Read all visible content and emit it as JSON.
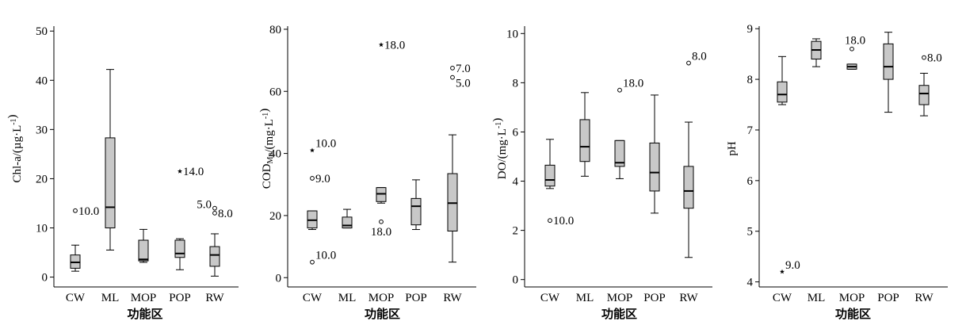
{
  "chart_data": [
    {
      "type": "boxplot",
      "ylabel": "Chl-a/(µg·L⁻¹)",
      "xlabel": "功能区",
      "ylim": [
        -2,
        51
      ],
      "yticks": [
        0,
        10,
        20,
        30,
        40,
        50
      ],
      "categories": [
        "CW",
        "ML",
        "MOP",
        "POP",
        "RW"
      ],
      "boxes": [
        {
          "category": "CW",
          "min": 1.2,
          "q1": 1.8,
          "median": 3.0,
          "q3": 4.5,
          "max": 6.5
        },
        {
          "category": "ML",
          "min": 5.5,
          "q1": 10.0,
          "median": 14.2,
          "q3": 28.3,
          "max": 42.2
        },
        {
          "category": "MOP",
          "min": 3.0,
          "q1": 3.3,
          "median": 3.6,
          "q3": 7.5,
          "max": 9.7
        },
        {
          "category": "POP",
          "min": 1.5,
          "q1": 4.0,
          "median": 4.8,
          "q3": 7.5,
          "max": 7.8
        },
        {
          "category": "RW",
          "min": 0.2,
          "q1": 2.2,
          "median": 4.5,
          "q3": 6.2,
          "max": 8.8
        }
      ],
      "outliers": [
        {
          "category": "CW",
          "value": 13.5,
          "marker": "circle",
          "label": "10.0",
          "label_side": "right"
        },
        {
          "category": "POP",
          "value": 21.5,
          "marker": "star",
          "label": "14.0",
          "label_side": "right"
        },
        {
          "category": "RW",
          "value": 14.0,
          "marker": "circle",
          "label": "5.0",
          "label_side": "left"
        },
        {
          "category": "RW",
          "value": 13.0,
          "marker": "circle",
          "label": "8.0",
          "label_side": "right"
        }
      ]
    },
    {
      "type": "boxplot",
      "ylabel": "COD_Mn/(mg·L⁻¹)",
      "xlabel": "功能区",
      "ylim": [
        -3,
        81
      ],
      "yticks": [
        0,
        20,
        40,
        60,
        80
      ],
      "categories": [
        "CW",
        "ML",
        "MOP",
        "POP",
        "RW"
      ],
      "boxes": [
        {
          "category": "CW",
          "min": 15.5,
          "q1": 16.0,
          "median": 18.5,
          "q3": 21.5,
          "max": 21.5
        },
        {
          "category": "ML",
          "min": 16.0,
          "q1": 16.0,
          "median": 16.8,
          "q3": 19.5,
          "max": 22.0
        },
        {
          "category": "MOP",
          "min": 24.0,
          "q1": 24.5,
          "median": 27.0,
          "q3": 29.0,
          "max": 29.0
        },
        {
          "category": "POP",
          "min": 15.5,
          "q1": 17.0,
          "median": 23.0,
          "q3": 25.5,
          "max": 31.5
        },
        {
          "category": "RW",
          "min": 5.0,
          "q1": 15.0,
          "median": 24.0,
          "q3": 33.5,
          "max": 46.0
        }
      ],
      "outliers": [
        {
          "category": "CW",
          "value": 41.0,
          "marker": "star",
          "label": "10.0",
          "label_side": "right-up"
        },
        {
          "category": "CW",
          "value": 32.0,
          "marker": "circle",
          "label": "9.0",
          "label_side": "right"
        },
        {
          "category": "CW",
          "value": 5.0,
          "marker": "circle",
          "label": "10.0",
          "label_side": "right-up"
        },
        {
          "category": "MOP",
          "value": 75.0,
          "marker": "star",
          "label": "18.0",
          "label_side": "right"
        },
        {
          "category": "MOP",
          "value": 18.0,
          "marker": "circle",
          "label": "18.0",
          "label_side": "below"
        },
        {
          "category": "RW",
          "value": 67.5,
          "marker": "circle",
          "label": "7.0",
          "label_side": "right"
        },
        {
          "category": "RW",
          "value": 64.5,
          "marker": "circle",
          "label": "5.0",
          "label_side": "right-down"
        }
      ]
    },
    {
      "type": "boxplot",
      "ylabel": "DO/(mg·L⁻¹)",
      "xlabel": "功能区",
      "ylim": [
        -0.3,
        10.3
      ],
      "yticks": [
        0,
        2,
        4,
        6,
        8,
        10
      ],
      "categories": [
        "CW",
        "ML",
        "MOP",
        "POP",
        "RW"
      ],
      "boxes": [
        {
          "category": "CW",
          "min": 3.7,
          "q1": 3.8,
          "median": 4.05,
          "q3": 4.65,
          "max": 5.7
        },
        {
          "category": "ML",
          "min": 4.2,
          "q1": 4.8,
          "median": 5.4,
          "q3": 6.5,
          "max": 7.6
        },
        {
          "category": "MOP",
          "min": 4.1,
          "q1": 4.6,
          "median": 4.75,
          "q3": 5.65,
          "max": 5.65
        },
        {
          "category": "POP",
          "min": 2.7,
          "q1": 3.6,
          "median": 4.35,
          "q3": 5.55,
          "max": 7.5
        },
        {
          "category": "RW",
          "min": 0.9,
          "q1": 2.9,
          "median": 3.6,
          "q3": 4.6,
          "max": 6.4
        }
      ],
      "outliers": [
        {
          "category": "CW",
          "value": 2.4,
          "marker": "circle",
          "label": "10.0",
          "label_side": "right"
        },
        {
          "category": "MOP",
          "value": 7.7,
          "marker": "circle",
          "label": "18.0",
          "label_side": "right-up"
        },
        {
          "category": "RW",
          "value": 8.8,
          "marker": "circle",
          "label": "8.0",
          "label_side": "right-up"
        }
      ]
    },
    {
      "type": "boxplot",
      "ylabel": "pH",
      "xlabel": "功能区",
      "ylim": [
        3.9,
        9.05
      ],
      "yticks": [
        4,
        5,
        6,
        7,
        8,
        9
      ],
      "categories": [
        "CW",
        "ML",
        "MOP",
        "POP",
        "RW"
      ],
      "boxes": [
        {
          "category": "CW",
          "min": 7.5,
          "q1": 7.55,
          "median": 7.7,
          "q3": 7.95,
          "max": 8.45
        },
        {
          "category": "ML",
          "min": 8.25,
          "q1": 8.4,
          "median": 8.58,
          "q3": 8.75,
          "max": 8.8
        },
        {
          "category": "MOP",
          "min": 8.2,
          "q1": 8.2,
          "median": 8.25,
          "q3": 8.3,
          "max": 8.3
        },
        {
          "category": "POP",
          "min": 7.35,
          "q1": 8.0,
          "median": 8.25,
          "q3": 8.7,
          "max": 8.93
        },
        {
          "category": "RW",
          "min": 7.28,
          "q1": 7.5,
          "median": 7.72,
          "q3": 7.88,
          "max": 8.12
        }
      ],
      "outliers": [
        {
          "category": "CW",
          "value": 4.2,
          "marker": "star",
          "label": "9.0",
          "label_side": "right-up"
        },
        {
          "category": "MOP",
          "value": 8.6,
          "marker": "circle",
          "label": "18.0",
          "label_side": "above"
        },
        {
          "category": "RW",
          "value": 8.43,
          "marker": "circle",
          "label": "8.0",
          "label_side": "right"
        }
      ]
    }
  ]
}
